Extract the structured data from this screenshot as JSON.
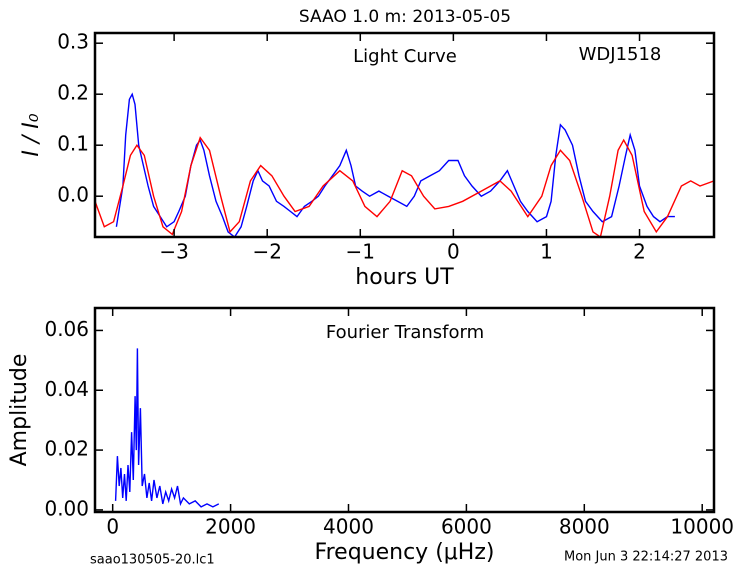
{
  "title": "SAAO 1.0 m:  2013-05-05",
  "footer_left": "saao130505-20.lc1",
  "footer_right": "Mon Jun  3 22:14:27 2013",
  "chart_data": [
    {
      "type": "line",
      "xlabel": "hours UT",
      "ylabel": "I / I₀",
      "annotations": [
        "Light Curve",
        "WDJ1518"
      ],
      "xlim": [
        -3.85,
        2.8
      ],
      "ylim": [
        -0.08,
        0.32
      ],
      "xticks": [
        {
          "value": -3,
          "label": "−3"
        },
        {
          "value": -2,
          "label": "−2"
        },
        {
          "value": -1,
          "label": "−1"
        },
        0,
        1,
        2
      ],
      "yticks": [
        {
          "value": 0,
          "label": "0.0"
        },
        0.1,
        0.2,
        0.3
      ],
      "series": [
        {
          "color": "#0000ff",
          "x": [
            -3.62,
            -3.55,
            -3.52,
            -3.48,
            -3.45,
            -3.42,
            -3.38,
            -3.33,
            -3.28,
            -3.22,
            -3.15,
            -3.08,
            -3.0,
            -2.95,
            -2.88,
            -2.82,
            -2.76,
            -2.72,
            -2.68,
            -2.62,
            -2.55,
            -2.48,
            -2.42,
            -2.35,
            -2.28,
            -2.22,
            -2.15,
            -2.1,
            -2.05,
            -1.98,
            -1.9,
            -1.82,
            -1.75,
            -1.68,
            -1.6,
            -1.52,
            -1.45,
            -1.38,
            -1.3,
            -1.22,
            -1.15,
            -1.1,
            -1.05,
            -0.98,
            -0.9,
            -0.8,
            -0.7,
            -0.6,
            -0.5,
            -0.42,
            -0.35,
            -0.25,
            -0.15,
            -0.05,
            0.05,
            0.12,
            0.2,
            0.3,
            0.4,
            0.5,
            0.58,
            0.65,
            0.72,
            0.8,
            0.9,
            1.0,
            1.05,
            1.1,
            1.15,
            1.2,
            1.28,
            1.35,
            1.42,
            1.5,
            1.6,
            1.7,
            1.78,
            1.85,
            1.9,
            1.95,
            2.0,
            2.08,
            2.15,
            2.22,
            2.3,
            2.38
          ],
          "values": [
            -0.06,
            0.02,
            0.12,
            0.19,
            0.2,
            0.18,
            0.1,
            0.06,
            0.02,
            -0.02,
            -0.04,
            -0.06,
            -0.05,
            -0.03,
            0.0,
            0.06,
            0.1,
            0.11,
            0.09,
            0.04,
            -0.01,
            -0.04,
            -0.07,
            -0.08,
            -0.06,
            -0.02,
            0.03,
            0.05,
            0.03,
            0.02,
            -0.01,
            -0.02,
            -0.03,
            -0.04,
            -0.02,
            -0.01,
            0.0,
            0.02,
            0.04,
            0.06,
            0.09,
            0.06,
            0.02,
            0.01,
            0.0,
            0.01,
            0.0,
            -0.01,
            -0.02,
            0.0,
            0.03,
            0.04,
            0.05,
            0.07,
            0.07,
            0.04,
            0.02,
            0.0,
            0.01,
            0.03,
            0.05,
            0.02,
            -0.01,
            -0.03,
            -0.05,
            -0.04,
            -0.01,
            0.08,
            0.14,
            0.13,
            0.1,
            0.04,
            -0.01,
            -0.03,
            -0.05,
            -0.04,
            0.02,
            0.08,
            0.12,
            0.09,
            0.02,
            -0.02,
            -0.04,
            -0.05,
            -0.04,
            -0.04
          ]
        },
        {
          "color": "#ff0000",
          "x": [
            -3.85,
            -3.75,
            -3.65,
            -3.55,
            -3.47,
            -3.4,
            -3.32,
            -3.22,
            -3.12,
            -3.02,
            -2.92,
            -2.82,
            -2.72,
            -2.62,
            -2.5,
            -2.4,
            -2.3,
            -2.18,
            -2.07,
            -1.95,
            -1.82,
            -1.7,
            -1.55,
            -1.4,
            -1.22,
            -1.08,
            -0.95,
            -0.82,
            -0.68,
            -0.55,
            -0.45,
            -0.32,
            -0.2,
            -0.05,
            0.1,
            0.3,
            0.5,
            0.62,
            0.8,
            0.95,
            1.05,
            1.15,
            1.25,
            1.38,
            1.5,
            1.58,
            1.68,
            1.77,
            1.83,
            1.92,
            2.05,
            2.18,
            2.3,
            2.45,
            2.55,
            2.65,
            2.8
          ],
          "values": [
            -0.01,
            -0.06,
            -0.05,
            0.02,
            0.08,
            0.1,
            0.08,
            0.0,
            -0.06,
            -0.075,
            -0.03,
            0.06,
            0.115,
            0.09,
            0.0,
            -0.07,
            -0.05,
            0.03,
            0.06,
            0.04,
            0.0,
            -0.03,
            -0.02,
            0.02,
            0.05,
            0.03,
            -0.02,
            -0.04,
            -0.01,
            0.05,
            0.04,
            0.0,
            -0.025,
            -0.02,
            -0.01,
            0.01,
            0.03,
            0.01,
            -0.04,
            0.0,
            0.06,
            0.09,
            0.07,
            0.0,
            -0.07,
            -0.08,
            0.0,
            0.09,
            0.11,
            0.08,
            -0.03,
            -0.07,
            -0.04,
            0.02,
            0.03,
            0.02,
            0.03
          ]
        }
      ]
    },
    {
      "type": "line",
      "xlabel": "Frequency (μHz)",
      "ylabel": "Amplitude",
      "annotations": [
        "Fourier Transform"
      ],
      "xlim": [
        -300,
        10200
      ],
      "ylim": [
        -0.0007,
        0.0675
      ],
      "xticks": [
        0,
        2000,
        4000,
        6000,
        8000,
        10000
      ],
      "yticks": [
        {
          "value": 0,
          "label": "0.00"
        },
        {
          "value": 0.02,
          "label": "0.02"
        },
        {
          "value": 0.04,
          "label": "0.04"
        },
        {
          "value": 0.06,
          "label": "0.06"
        }
      ],
      "series": [
        {
          "color": "#0000ff",
          "x": [
            50,
            80,
            110,
            140,
            170,
            200,
            230,
            260,
            290,
            320,
            350,
            380,
            400,
            420,
            440,
            470,
            500,
            540,
            580,
            620,
            660,
            700,
            750,
            800,
            850,
            900,
            950,
            1000,
            1050,
            1100,
            1150,
            1200,
            1300,
            1400,
            1500,
            1600,
            1700,
            1800
          ],
          "values": [
            0.003,
            0.018,
            0.008,
            0.014,
            0.004,
            0.012,
            0.003,
            0.015,
            0.006,
            0.026,
            0.01,
            0.038,
            0.02,
            0.054,
            0.015,
            0.034,
            0.008,
            0.012,
            0.004,
            0.009,
            0.003,
            0.01,
            0.004,
            0.008,
            0.002,
            0.006,
            0.003,
            0.007,
            0.004,
            0.008,
            0.002,
            0.004,
            0.002,
            0.003,
            0.001,
            0.002,
            0.001,
            0.002
          ]
        }
      ]
    }
  ]
}
